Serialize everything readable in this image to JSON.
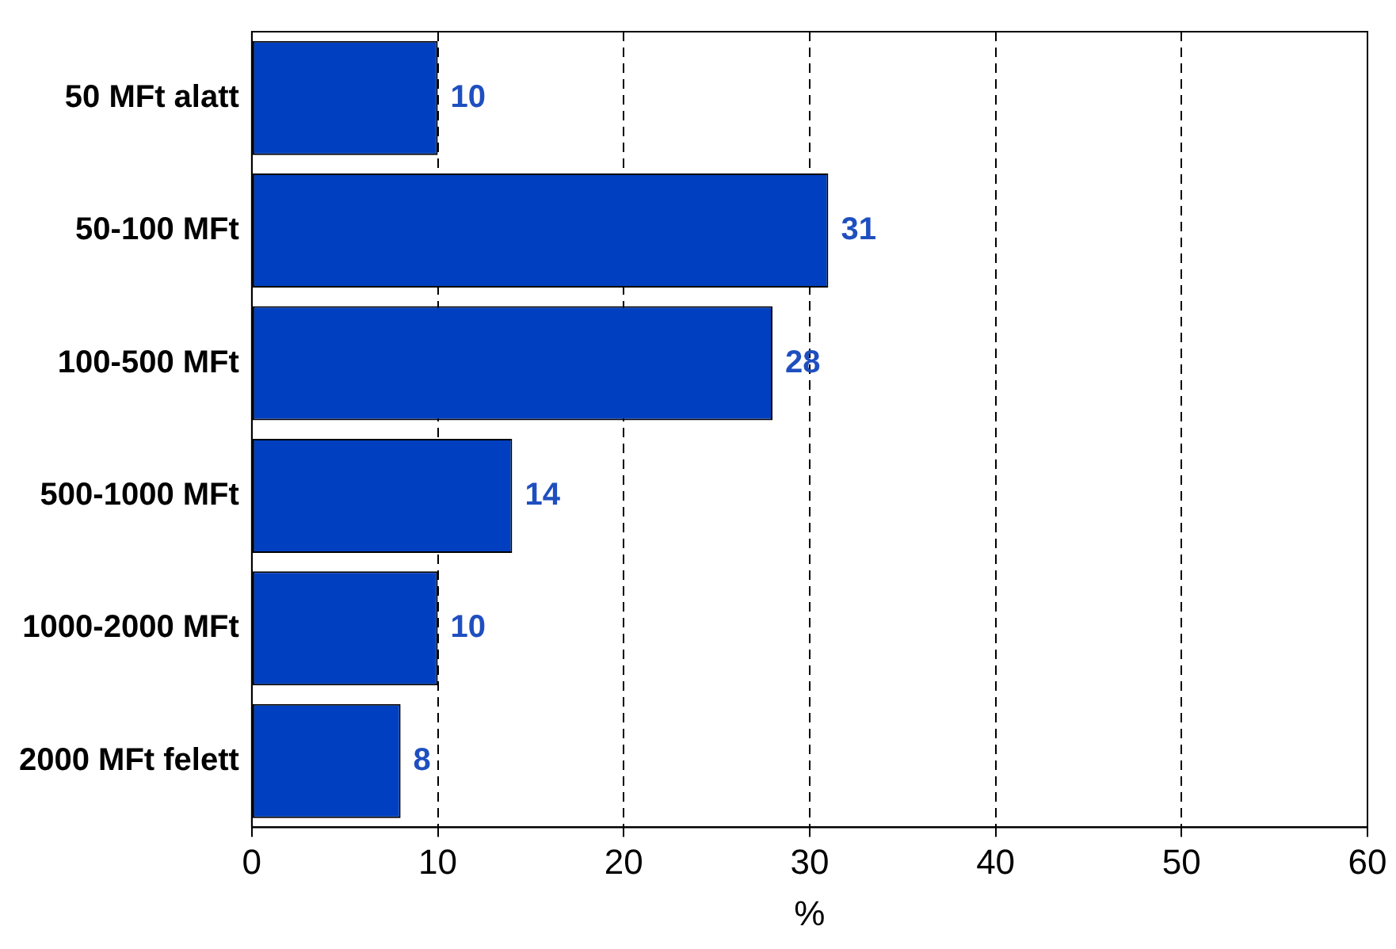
{
  "chart_data": {
    "type": "bar",
    "orientation": "horizontal",
    "xlabel": "%",
    "categories": [
      "50 MFt alatt",
      "50-100 MFt",
      "100-500 MFt",
      "500-1000 MFt",
      "1000-2000 MFt",
      "2000 MFt felett"
    ],
    "values": [
      10,
      31,
      28,
      14,
      10,
      8
    ],
    "color": "#0040c0",
    "xlim": [
      0,
      60
    ],
    "xticks": [
      0,
      10,
      20,
      30,
      40,
      50,
      60
    ],
    "grid": "x",
    "legend": false,
    "data_labels": true
  }
}
